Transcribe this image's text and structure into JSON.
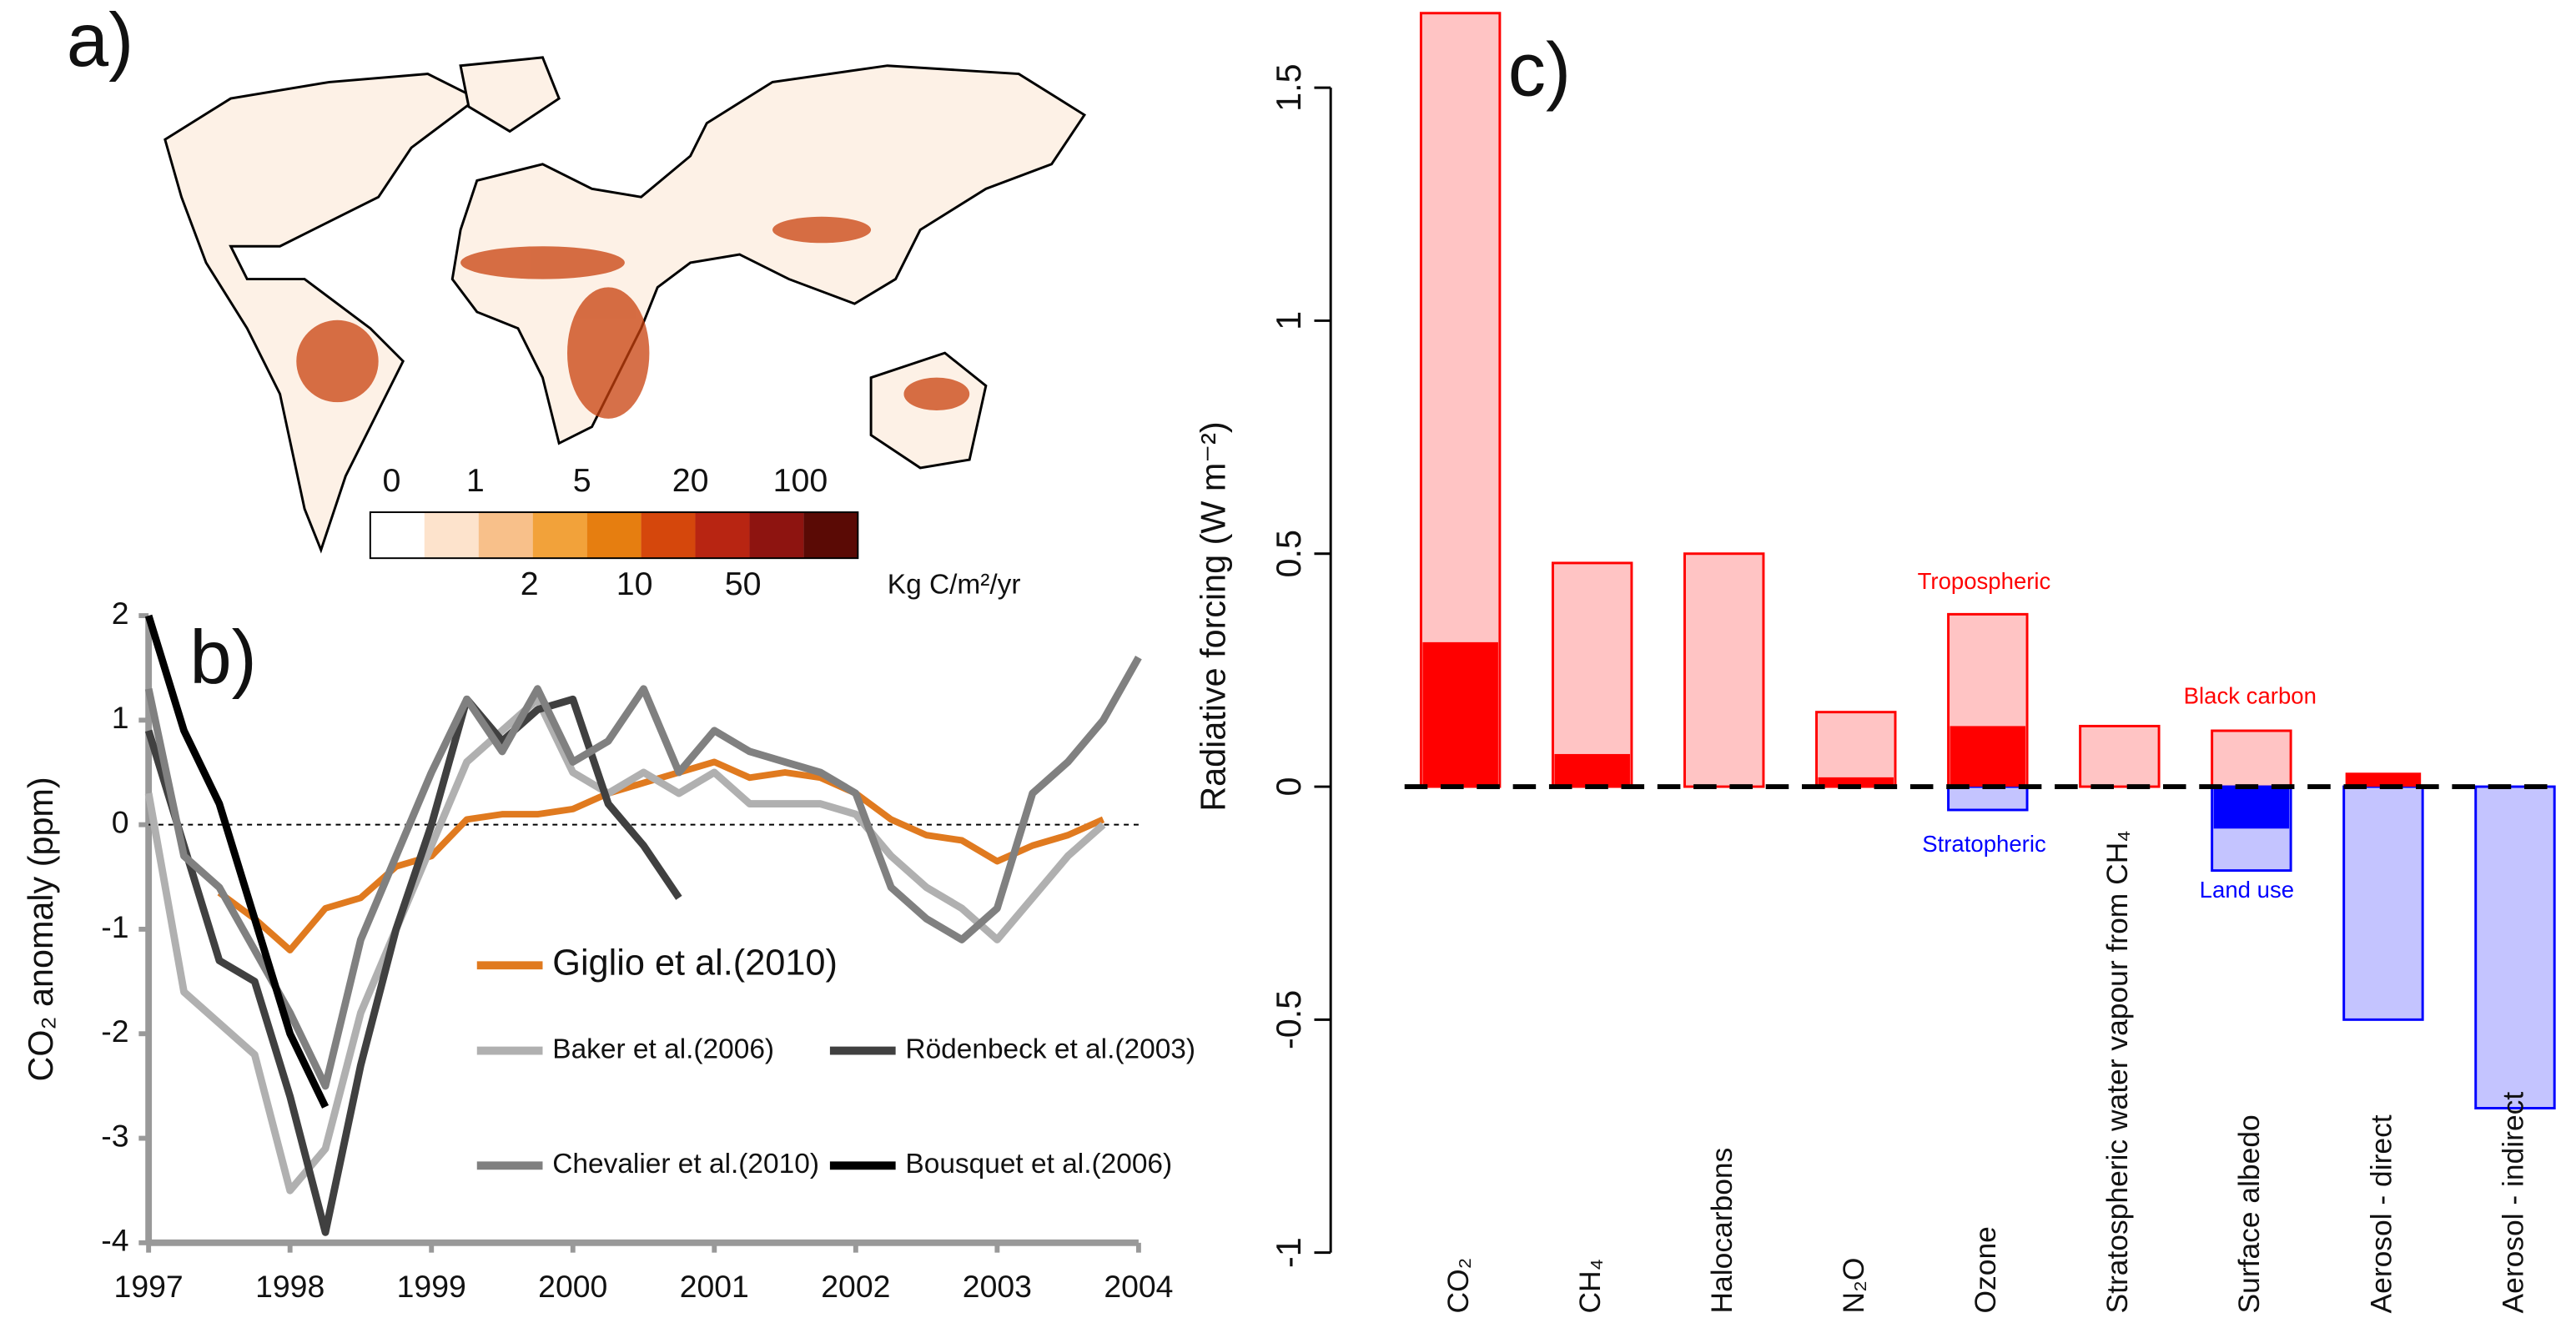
{
  "chart_data": [
    {
      "type": "map",
      "title": "a)",
      "colorbar": {
        "colors": [
          "#ffffff",
          "#fde3cc",
          "#f8c08a",
          "#f2a23a",
          "#e67e10",
          "#d5470c",
          "#b82512",
          "#8e1410",
          "#5a0a05"
        ],
        "ticks_top": [
          0,
          1,
          5,
          20,
          100
        ],
        "ticks_bottom": [
          2,
          10,
          50
        ],
        "unit": "Kg C/m²/yr"
      }
    },
    {
      "type": "line",
      "title": "b)",
      "ylabel": "CO₂ anomaly (ppm)",
      "x": [
        1997,
        1997.25,
        1997.5,
        1997.75,
        1998,
        1998.25,
        1998.5,
        1998.75,
        1999,
        1999.25,
        1999.5,
        1999.75,
        2000,
        2000.25,
        2000.5,
        2000.75,
        2001,
        2001.25,
        2001.5,
        2001.75,
        2002,
        2002.25,
        2002.5,
        2002.75,
        2003,
        2003.25,
        2003.5,
        2003.75,
        2004
      ],
      "xlim": [
        1997,
        2004
      ],
      "xticks": [
        1997,
        1998,
        1999,
        2000,
        2001,
        2002,
        2003,
        2004
      ],
      "ylim": [
        -4,
        2
      ],
      "yticks": [
        -4,
        -3,
        -2,
        -1,
        0,
        1,
        2
      ],
      "zero_line": true,
      "series": [
        {
          "name": "Giglio et al.(2010)",
          "color": "#e07a1f",
          "values": [
            null,
            null,
            -0.65,
            -0.9,
            -1.2,
            -0.8,
            -0.7,
            -0.4,
            -0.3,
            0.05,
            0.1,
            0.1,
            0.15,
            0.3,
            0.4,
            0.5,
            0.6,
            0.45,
            0.5,
            0.45,
            0.3,
            0.05,
            -0.1,
            -0.15,
            -0.35,
            -0.2,
            -0.1,
            0.05,
            null
          ]
        },
        {
          "name": "Baker et al.(2006)",
          "color": "#b0b0b0",
          "values": [
            0.3,
            -1.6,
            -1.9,
            -2.2,
            -3.5,
            -3.1,
            -1.8,
            -1.0,
            -0.2,
            0.6,
            0.9,
            1.2,
            0.5,
            0.3,
            0.5,
            0.3,
            0.5,
            0.2,
            0.2,
            0.2,
            0.1,
            -0.3,
            -0.6,
            -0.8,
            -1.1,
            -0.7,
            -0.3,
            0.0,
            null
          ]
        },
        {
          "name": "Rödenbeck et al.(2003)",
          "color": "#404040",
          "values": [
            0.9,
            -0.2,
            -1.3,
            -1.5,
            -2.6,
            -3.9,
            -2.3,
            -1.0,
            0.0,
            1.2,
            0.8,
            1.1,
            1.2,
            0.2,
            -0.2,
            -0.7,
            null,
            null,
            null,
            null,
            null,
            null,
            null,
            null,
            null,
            null,
            null,
            null,
            null
          ]
        },
        {
          "name": "Chevalier et al.(2010)",
          "color": "#808080",
          "values": [
            1.3,
            -0.3,
            -0.6,
            -1.2,
            -1.8,
            -2.5,
            -1.1,
            -0.3,
            0.5,
            1.2,
            0.7,
            1.3,
            0.6,
            0.8,
            1.3,
            0.5,
            0.9,
            0.7,
            0.6,
            0.5,
            0.3,
            -0.6,
            -0.9,
            -1.1,
            -0.8,
            0.3,
            0.6,
            1.0,
            1.6
          ]
        },
        {
          "name": "Bousquet et al.(2006)",
          "color": "#000000",
          "values": [
            2.0,
            0.9,
            0.2,
            -0.9,
            -2.0,
            -2.7,
            null,
            null,
            null,
            null,
            null,
            null,
            null,
            null,
            null,
            null,
            null,
            null,
            null,
            null,
            null,
            null,
            null,
            null,
            null,
            null,
            null,
            null,
            null
          ]
        }
      ]
    },
    {
      "type": "bar",
      "title": "c)",
      "ylabel": "Radiative forcing (W m⁻²)",
      "categories": [
        "CO₂",
        "CH₄",
        "Halocarbons",
        "N₂O",
        "Ozone",
        "Stratospheric water vapour from CH₄",
        "Surface albedo",
        "Aerosol - direct",
        "Aerosol - indirect"
      ],
      "ylim": [
        -1,
        1.66
      ],
      "yticks": [
        -1,
        -0.5,
        0,
        0.5,
        1,
        1.5
      ],
      "zero_line": true,
      "series": [
        {
          "color": "#ffc4c4",
          "stroke": "#ff0000",
          "values": [
            1.66,
            0.48,
            0.5,
            0.16,
            0.37,
            0.13,
            0.12,
            null,
            null
          ]
        },
        {
          "color": "#c4c4ff",
          "stroke": "#0000ff",
          "values": [
            null,
            null,
            null,
            null,
            -0.05,
            null,
            -0.18,
            -0.5,
            -0.69
          ]
        },
        {
          "color": "#ff0000",
          "values": [
            0.31,
            0.07,
            null,
            0.02,
            0.13,
            null,
            null,
            0.03,
            null
          ]
        },
        {
          "color": "#0000ff",
          "values": [
            null,
            null,
            null,
            null,
            null,
            null,
            -0.09,
            null,
            null
          ]
        }
      ],
      "annotations": [
        {
          "text": "Tropospheric",
          "color": "#ff0000"
        },
        {
          "text": "Stratopheric",
          "color": "#0000ff"
        },
        {
          "text": "Black carbon",
          "color": "#ff0000"
        },
        {
          "text": "Land use",
          "color": "#0000ff"
        }
      ]
    }
  ]
}
